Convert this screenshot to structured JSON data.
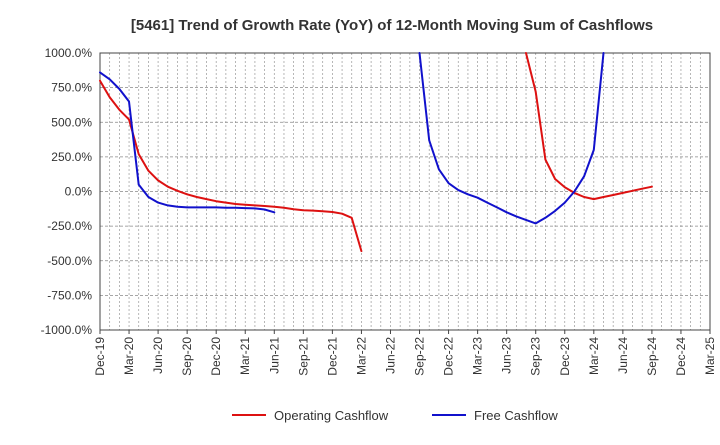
{
  "chart_data": {
    "type": "line",
    "title": "[5461]  Trend of Growth Rate (YoY) of 12-Month Moving Sum of Cashflows",
    "xlabel": "",
    "ylabel": "",
    "ylim": [
      -1000,
      1000
    ],
    "y_ticks": [
      "1000.0%",
      "750.0%",
      "500.0%",
      "250.0%",
      "0.0%",
      "-250.0%",
      "-500.0%",
      "-750.0%",
      "-1000.0%"
    ],
    "x_ticks": [
      "Dec-19",
      "Mar-20",
      "Jun-20",
      "Sep-20",
      "Dec-20",
      "Mar-21",
      "Jun-21",
      "Sep-21",
      "Dec-21",
      "Mar-22",
      "Jun-22",
      "Sep-22",
      "Dec-22",
      "Mar-23",
      "Jun-23",
      "Sep-23",
      "Dec-23",
      "Mar-24",
      "Jun-24",
      "Sep-24",
      "Dec-24",
      "Mar-25"
    ],
    "grid": true,
    "legend_position": "bottom",
    "series": [
      {
        "name": "Operating Cashflow",
        "color": "#dd1111",
        "points": [
          [
            "Dec-19",
            800
          ],
          [
            "Jan-20",
            680
          ],
          [
            "Feb-20",
            590
          ],
          [
            "Mar-20",
            520
          ],
          [
            "Apr-20",
            270
          ],
          [
            "May-20",
            150
          ],
          [
            "Jun-20",
            80
          ],
          [
            "Jul-20",
            35
          ],
          [
            "Aug-20",
            5
          ],
          [
            "Sep-20",
            -20
          ],
          [
            "Oct-20",
            -40
          ],
          [
            "Nov-20",
            -55
          ],
          [
            "Dec-20",
            -70
          ],
          [
            "Jan-21",
            -80
          ],
          [
            "Feb-21",
            -90
          ],
          [
            "Mar-21",
            -95
          ],
          [
            "Apr-21",
            -100
          ],
          [
            "May-21",
            -105
          ],
          [
            "Jun-21",
            -110
          ],
          [
            "Jul-21",
            -118
          ],
          [
            "Aug-21",
            -128
          ],
          [
            "Sep-21",
            -135
          ],
          [
            "Oct-21",
            -138
          ],
          [
            "Nov-21",
            -142
          ],
          [
            "Dec-21",
            -148
          ],
          [
            "Jan-22",
            -160
          ],
          [
            "Feb-22",
            -190
          ],
          [
            "Mar-22",
            -430
          ],
          [
            "Aug-23",
            1000
          ],
          [
            "Sep-23",
            720
          ],
          [
            "Oct-23",
            230
          ],
          [
            "Nov-23",
            90
          ],
          [
            "Dec-23",
            30
          ],
          [
            "Jan-24",
            -10
          ],
          [
            "Feb-24",
            -40
          ],
          [
            "Mar-24",
            -55
          ],
          [
            "Apr-24",
            -40
          ],
          [
            "May-24",
            -25
          ],
          [
            "Jun-24",
            -10
          ],
          [
            "Jul-24",
            5
          ],
          [
            "Aug-24",
            20
          ],
          [
            "Sep-24",
            35
          ]
        ]
      },
      {
        "name": "Free Cashflow",
        "color": "#1111cc",
        "points": [
          [
            "Dec-19",
            860
          ],
          [
            "Jan-20",
            810
          ],
          [
            "Feb-20",
            740
          ],
          [
            "Mar-20",
            650
          ],
          [
            "Apr-20",
            50
          ],
          [
            "May-20",
            -40
          ],
          [
            "Jun-20",
            -80
          ],
          [
            "Jul-20",
            -100
          ],
          [
            "Aug-20",
            -110
          ],
          [
            "Sep-20",
            -115
          ],
          [
            "Oct-20",
            -115
          ],
          [
            "Nov-20",
            -115
          ],
          [
            "Dec-20",
            -115
          ],
          [
            "Jan-21",
            -117
          ],
          [
            "Feb-21",
            -118
          ],
          [
            "Mar-21",
            -120
          ],
          [
            "Apr-21",
            -122
          ],
          [
            "May-21",
            -130
          ],
          [
            "Jun-21",
            -150
          ],
          [
            "Sep-22",
            1000
          ],
          [
            "Oct-22",
            370
          ],
          [
            "Nov-22",
            160
          ],
          [
            "Dec-22",
            60
          ],
          [
            "Jan-23",
            10
          ],
          [
            "Feb-23",
            -20
          ],
          [
            "Mar-23",
            -45
          ],
          [
            "Apr-23",
            -80
          ],
          [
            "May-23",
            -115
          ],
          [
            "Jun-23",
            -150
          ],
          [
            "Jul-23",
            -180
          ],
          [
            "Aug-23",
            -205
          ],
          [
            "Sep-23",
            -230
          ],
          [
            "Oct-23",
            -190
          ],
          [
            "Nov-23",
            -140
          ],
          [
            "Dec-23",
            -80
          ],
          [
            "Jan-24",
            0
          ],
          [
            "Feb-24",
            110
          ],
          [
            "Mar-24",
            300
          ],
          [
            "Apr-24",
            1000
          ]
        ]
      }
    ]
  }
}
